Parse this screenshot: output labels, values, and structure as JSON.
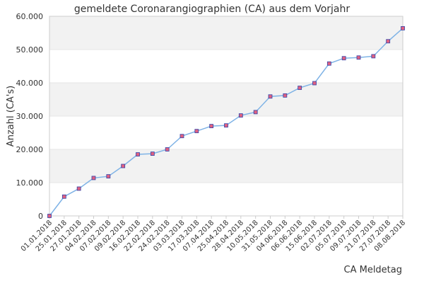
{
  "chart_data": {
    "type": "line",
    "title": "gemeldete Coronarangiographien (CA) aus dem Vorjahr",
    "xlabel": "CA Meldetag",
    "ylabel": "Anzahl (CA's)",
    "ylim": [
      0,
      60000
    ],
    "yticks": [
      "0",
      "10.000",
      "20.000",
      "30.000",
      "40.000",
      "50.000",
      "60.000"
    ],
    "grid": "horizontal bands",
    "categories": [
      "01.01.2018",
      "25.01.2018",
      "27.01.2018",
      "04.02.2018",
      "07.02.2018",
      "09.02.2018",
      "16.02.2018",
      "22.02.2018",
      "24.02.2018",
      "03.03.2018",
      "17.03.2018",
      "07.04.2018",
      "25.04.2018",
      "28.04.2018",
      "10.05.2018",
      "31.05.2018",
      "04.06.2018",
      "06.06.2018",
      "15.06.2018",
      "02.07.2018",
      "05.07.2018",
      "09.07.2018",
      "21.07.2018",
      "27.07.2018",
      "08.08.2018"
    ],
    "values": [
      0,
      5800,
      8200,
      11400,
      11900,
      15000,
      18500,
      18700,
      20000,
      24000,
      25500,
      27000,
      27200,
      30200,
      31200,
      35900,
      36200,
      38500,
      39900,
      45800,
      47400,
      47600,
      48000,
      52500,
      56400
    ],
    "colors": {
      "line": "#7fb3e6",
      "marker_fill": "#e06080",
      "marker_stroke": "#3344aa",
      "band": "#f2f2f2",
      "axis": "#cccccc"
    }
  }
}
